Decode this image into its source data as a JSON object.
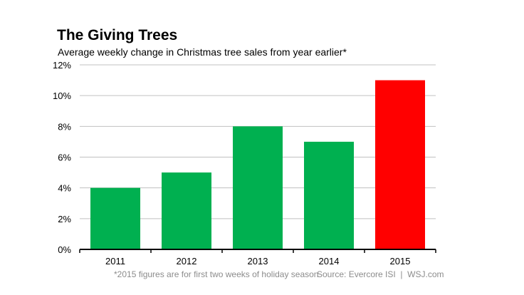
{
  "chart_data": {
    "type": "bar",
    "title": "The Giving Trees",
    "subtitle": "Average weekly change in Christmas tree sales from year earlier*",
    "categories": [
      "2011",
      "2012",
      "2013",
      "2014",
      "2015"
    ],
    "values": [
      4,
      5,
      8,
      7,
      11
    ],
    "bar_colors": [
      "#00b050",
      "#00b050",
      "#00b050",
      "#00b050",
      "#ff0000"
    ],
    "ylim": [
      0,
      12
    ],
    "yticks": [
      0,
      2,
      4,
      6,
      8,
      10,
      12
    ],
    "ytick_labels": [
      "0%",
      "2%",
      "4%",
      "6%",
      "8%",
      "10%",
      "12%"
    ],
    "grid": true,
    "grid_color": "#c0c0c0",
    "xlabel": "",
    "ylabel": "",
    "footnote": "*2015 figures are for first two weeks of holiday season",
    "source": "Source: Evercore ISI  |  WSJ.com"
  }
}
